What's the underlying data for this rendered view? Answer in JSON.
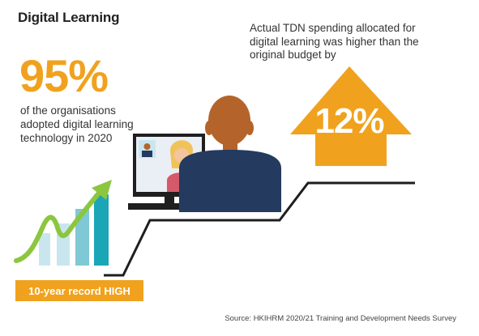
{
  "title": "Digital Learning",
  "adoption": {
    "value": "95%",
    "description": "of the organisations adopted digital learning technology in 2020"
  },
  "spending": {
    "description": "Actual TDN spending allocated for digital learning was higher than the original budget by",
    "value": "12%"
  },
  "record_badge": "10-year record HIGH",
  "source": "Source: HKIHRM 2020/21 Training and Development Needs Survey",
  "colors": {
    "accent_orange": "#f0a21e",
    "green": "#8cc63f",
    "teal": "#1aa6b7",
    "light_blue": "#c9e6ef",
    "navy": "#243a5e",
    "hair_brown": "#b4642a",
    "skin": "#f2c59e"
  },
  "icons": [
    "trend-up-arrow-icon",
    "bar-chart-icon",
    "monitor-icon",
    "person-icon",
    "up-arrow-icon"
  ]
}
